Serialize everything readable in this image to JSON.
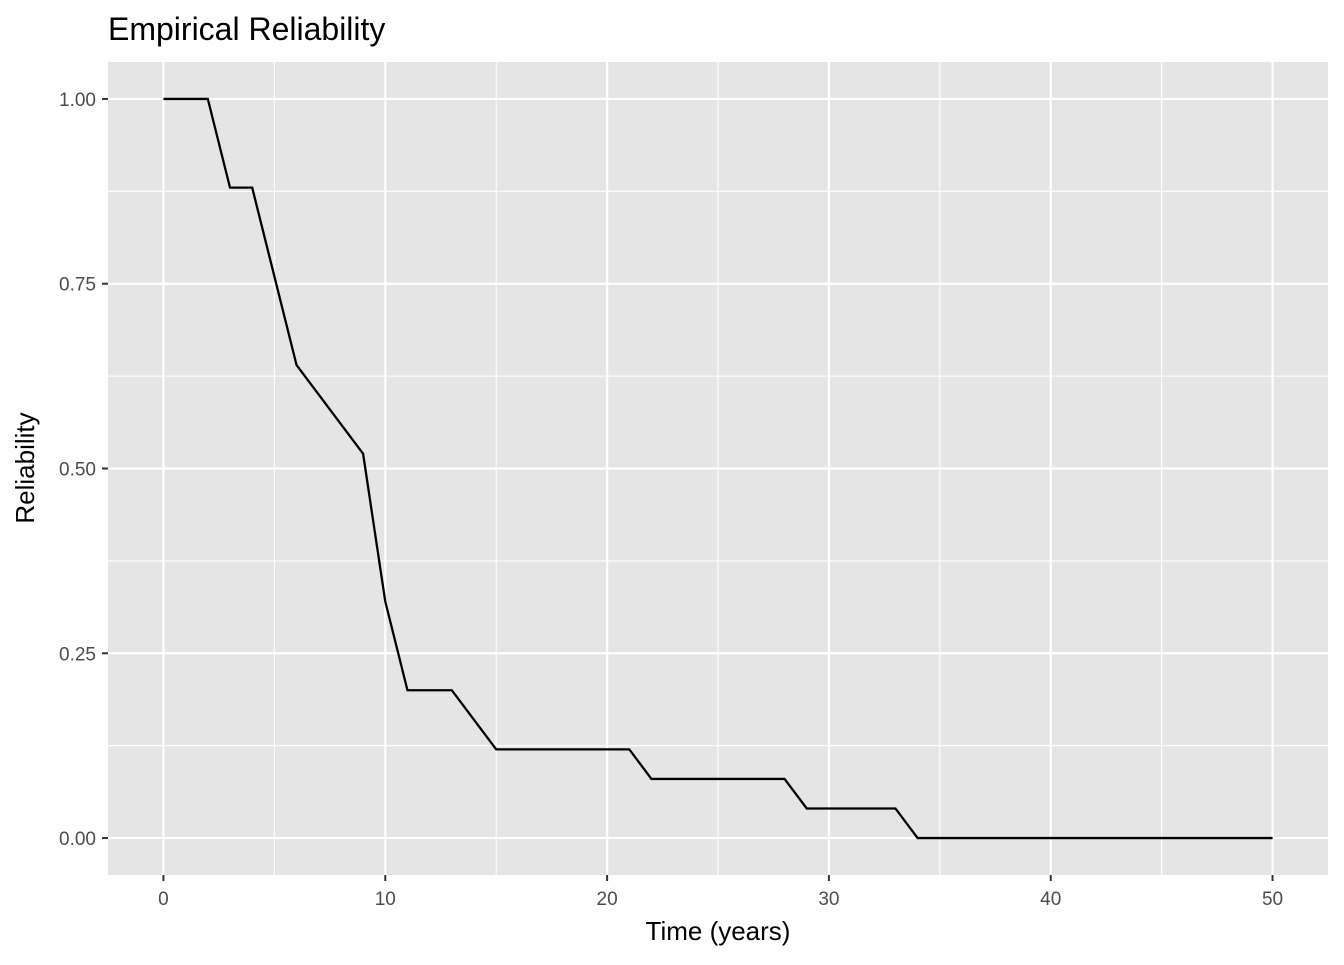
{
  "chart_data": {
    "type": "line",
    "title": "Empirical Reliability",
    "xlabel": "Time (years)",
    "ylabel": "Reliability",
    "xlim": [
      -2.5,
      52.5
    ],
    "ylim": [
      -0.05,
      1.05
    ],
    "xticks": [
      0,
      10,
      20,
      30,
      40,
      50
    ],
    "xtick_labels": [
      "0",
      "10",
      "20",
      "30",
      "40",
      "50"
    ],
    "yticks": [
      0,
      0.25,
      0.5,
      0.75,
      1
    ],
    "ytick_labels": [
      "0.00",
      "0.25",
      "0.50",
      "0.75",
      "1.00"
    ],
    "grid": true,
    "colors": {
      "panel": "#E5E5E5",
      "grid": "#FFFFFF",
      "line": "#000000"
    },
    "series": [
      {
        "x": [
          0,
          2,
          3,
          4,
          6,
          9,
          10,
          11,
          13,
          15,
          21,
          22,
          28,
          29,
          33,
          34,
          50
        ],
        "y": [
          1.0,
          1.0,
          0.88,
          0.88,
          0.64,
          0.52,
          0.32,
          0.2,
          0.2,
          0.12,
          0.12,
          0.08,
          0.08,
          0.04,
          0.04,
          0.0,
          0.0
        ]
      }
    ]
  }
}
